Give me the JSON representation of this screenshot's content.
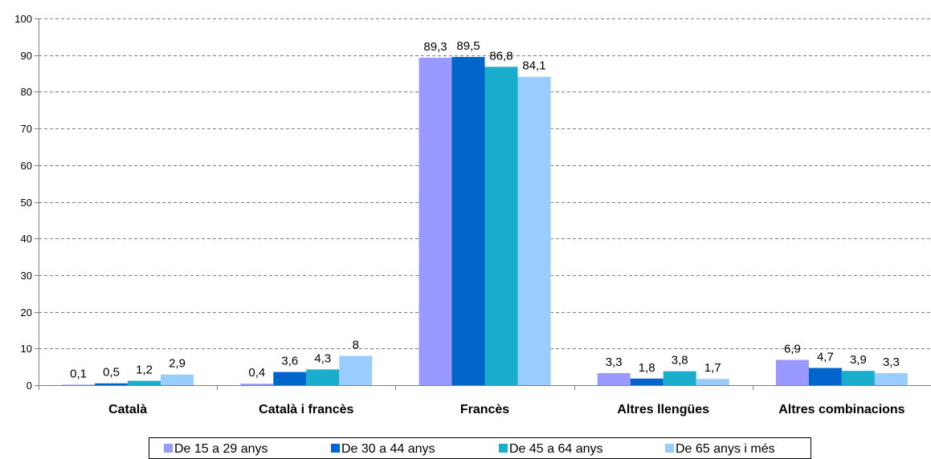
{
  "chart_data": {
    "type": "bar",
    "title": "",
    "xlabel": "",
    "ylabel": "",
    "ylim": [
      0,
      100
    ],
    "yticks": [
      0,
      10,
      20,
      30,
      40,
      50,
      60,
      70,
      80,
      90,
      100
    ],
    "grid": "horizontal dashed",
    "legend_position": "bottom",
    "categories": [
      "Català",
      "Català i francès",
      "Francès",
      "Altres llengües",
      "Altres combinacions"
    ],
    "series": [
      {
        "name": "De 15 a 29 anys",
        "color": "#9999FF",
        "values": [
          0.1,
          0.4,
          89.3,
          3.3,
          6.9
        ],
        "labels": [
          "0,1",
          "0,4",
          "89,3",
          "3,3",
          "6,9"
        ]
      },
      {
        "name": "De 30 a 44 anys",
        "color": "#0066CC",
        "values": [
          0.5,
          3.6,
          89.5,
          1.8,
          4.7
        ],
        "labels": [
          "0,5",
          "3,6",
          "89,5",
          "1,8",
          "4,7"
        ]
      },
      {
        "name": "De 45 a 64 anys",
        "color": "#1AAECC",
        "values": [
          1.2,
          4.3,
          86.8,
          3.8,
          3.9
        ],
        "labels": [
          "1,2",
          "4,3",
          "86,8",
          "3,8",
          "3,9"
        ]
      },
      {
        "name": "De 65 anys i més",
        "color": "#99CCFF",
        "values": [
          2.9,
          8,
          84.1,
          1.7,
          3.3
        ],
        "labels": [
          "2,9",
          "8",
          "84,1",
          "1,7",
          "3,3"
        ]
      }
    ]
  }
}
